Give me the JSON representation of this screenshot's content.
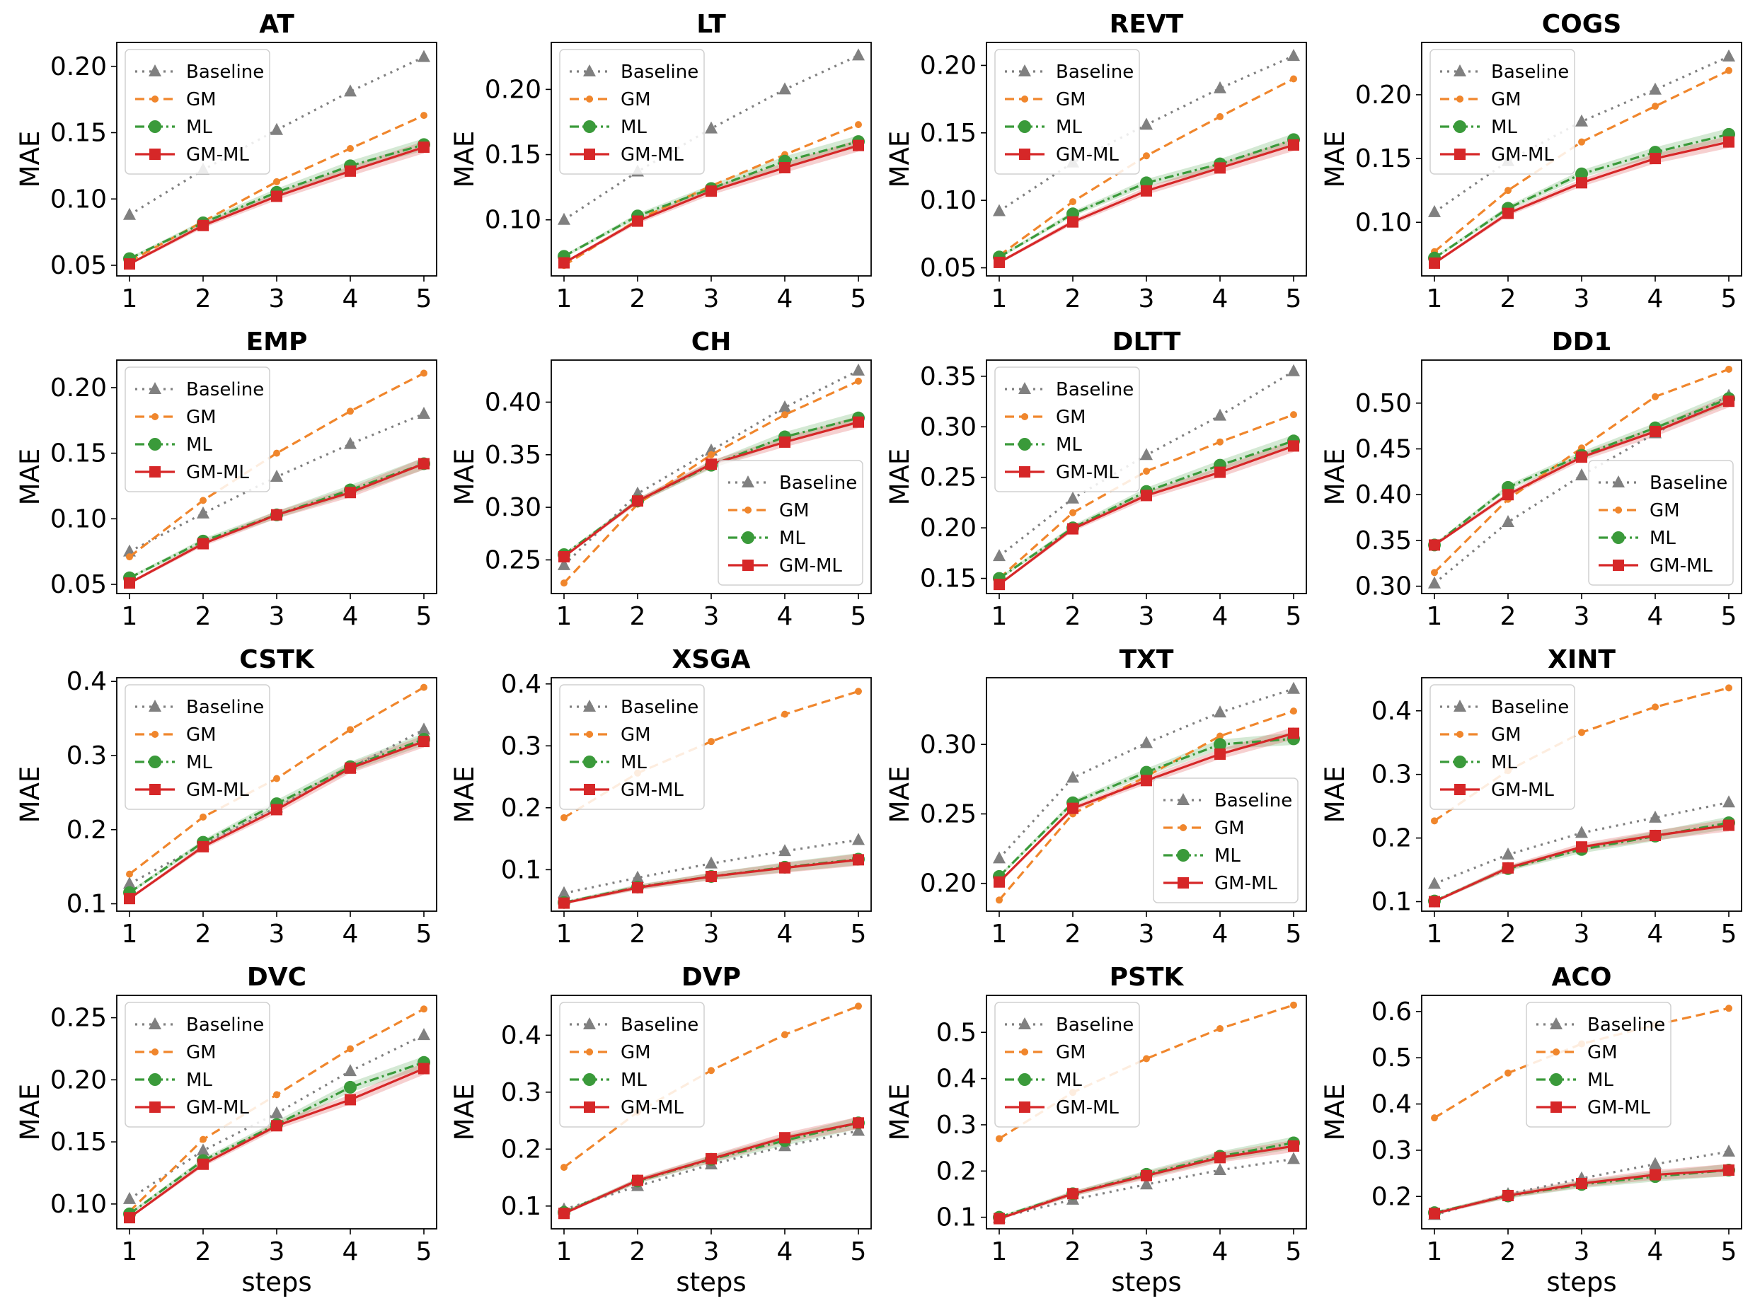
{
  "colors": {
    "Baseline": "#808080",
    "GM": "#f0862c",
    "ML": "#3a9a3a",
    "GM-ML": "#d62728"
  },
  "markers": {
    "Baseline": "triangle",
    "GM": "small-circle",
    "ML": "circle",
    "GM-ML": "square"
  },
  "dashes": {
    "Baseline": "dotted",
    "GM": "dashed",
    "ML": "dashdot",
    "GM-ML": "solid"
  },
  "chart_data": [
    {
      "type": "line",
      "title": "AT",
      "xlabel": "",
      "ylabel": "MAE",
      "x": [
        1,
        2,
        3,
        4,
        5
      ],
      "ylim": [
        0.042,
        0.218
      ],
      "yticks": [
        0.05,
        0.1,
        0.15,
        0.2
      ],
      "ytick_labels": [
        "0.05",
        "0.10",
        "0.15",
        "0.20"
      ],
      "legend": "upper-left",
      "series": [
        {
          "name": "Baseline",
          "values": [
            0.088,
            0.122,
            0.152,
            0.181,
            0.207
          ]
        },
        {
          "name": "GM",
          "values": [
            0.053,
            0.083,
            0.113,
            0.138,
            0.163
          ]
        },
        {
          "name": "ML",
          "values": [
            0.055,
            0.082,
            0.105,
            0.125,
            0.141
          ]
        },
        {
          "name": "GM-ML",
          "values": [
            0.051,
            0.08,
            0.102,
            0.121,
            0.139
          ]
        }
      ]
    },
    {
      "type": "line",
      "title": "LT",
      "xlabel": "",
      "ylabel": "MAE",
      "x": [
        1,
        2,
        3,
        4,
        5
      ],
      "ylim": [
        0.057,
        0.236
      ],
      "yticks": [
        0.1,
        0.15,
        0.2
      ],
      "ytick_labels": [
        "0.10",
        "0.15",
        "0.20"
      ],
      "legend": "upper-left",
      "series": [
        {
          "name": "Baseline",
          "values": [
            0.1,
            0.137,
            0.17,
            0.2,
            0.226
          ]
        },
        {
          "name": "GM",
          "values": [
            0.065,
            0.1,
            0.126,
            0.15,
            0.173
          ]
        },
        {
          "name": "ML",
          "values": [
            0.072,
            0.103,
            0.124,
            0.145,
            0.16
          ]
        },
        {
          "name": "GM-ML",
          "values": [
            0.067,
            0.099,
            0.122,
            0.14,
            0.157
          ]
        }
      ]
    },
    {
      "type": "line",
      "title": "REVT",
      "xlabel": "",
      "ylabel": "MAE",
      "x": [
        1,
        2,
        3,
        4,
        5
      ],
      "ylim": [
        0.044,
        0.217
      ],
      "yticks": [
        0.05,
        0.1,
        0.15,
        0.2
      ],
      "ytick_labels": [
        "0.05",
        "0.10",
        "0.15",
        "0.20"
      ],
      "legend": "upper-left",
      "series": [
        {
          "name": "Baseline",
          "values": [
            0.092,
            0.128,
            0.156,
            0.183,
            0.207
          ]
        },
        {
          "name": "GM",
          "values": [
            0.059,
            0.099,
            0.133,
            0.162,
            0.19
          ]
        },
        {
          "name": "ML",
          "values": [
            0.058,
            0.09,
            0.113,
            0.127,
            0.145
          ]
        },
        {
          "name": "GM-ML",
          "values": [
            0.054,
            0.084,
            0.107,
            0.124,
            0.141
          ]
        }
      ]
    },
    {
      "type": "line",
      "title": "COGS",
      "xlabel": "",
      "ylabel": "MAE",
      "x": [
        1,
        2,
        3,
        4,
        5
      ],
      "ylim": [
        0.058,
        0.241
      ],
      "yticks": [
        0.1,
        0.15,
        0.2
      ],
      "ytick_labels": [
        "0.10",
        "0.15",
        "0.20"
      ],
      "legend": "upper-left",
      "series": [
        {
          "name": "Baseline",
          "values": [
            0.108,
            0.148,
            0.179,
            0.204,
            0.23
          ]
        },
        {
          "name": "GM",
          "values": [
            0.077,
            0.125,
            0.163,
            0.191,
            0.219
          ]
        },
        {
          "name": "ML",
          "values": [
            0.072,
            0.111,
            0.138,
            0.155,
            0.169
          ]
        },
        {
          "name": "GM-ML",
          "values": [
            0.068,
            0.107,
            0.131,
            0.15,
            0.163
          ]
        }
      ]
    },
    {
      "type": "line",
      "title": "EMP",
      "xlabel": "",
      "ylabel": "MAE",
      "x": [
        1,
        2,
        3,
        4,
        5
      ],
      "ylim": [
        0.043,
        0.221
      ],
      "yticks": [
        0.05,
        0.1,
        0.15,
        0.2
      ],
      "ytick_labels": [
        "0.05",
        "0.10",
        "0.15",
        "0.20"
      ],
      "legend": "upper-left",
      "series": [
        {
          "name": "Baseline",
          "values": [
            0.075,
            0.104,
            0.132,
            0.157,
            0.18
          ]
        },
        {
          "name": "GM",
          "values": [
            0.071,
            0.114,
            0.15,
            0.182,
            0.211
          ]
        },
        {
          "name": "ML",
          "values": [
            0.055,
            0.083,
            0.103,
            0.122,
            0.142
          ]
        },
        {
          "name": "GM-ML",
          "values": [
            0.051,
            0.081,
            0.103,
            0.12,
            0.142
          ]
        }
      ]
    },
    {
      "type": "line",
      "title": "CH",
      "xlabel": "",
      "ylabel": "MAE",
      "x": [
        1,
        2,
        3,
        4,
        5
      ],
      "ylim": [
        0.218,
        0.44
      ],
      "yticks": [
        0.25,
        0.3,
        0.35,
        0.4
      ],
      "ytick_labels": [
        "0.25",
        "0.30",
        "0.35",
        "0.40"
      ],
      "legend": "lower-right",
      "series": [
        {
          "name": "Baseline",
          "values": [
            0.245,
            0.313,
            0.354,
            0.395,
            0.43
          ]
        },
        {
          "name": "GM",
          "values": [
            0.228,
            0.303,
            0.35,
            0.388,
            0.42
          ]
        },
        {
          "name": "ML",
          "values": [
            0.255,
            0.306,
            0.34,
            0.367,
            0.385
          ]
        },
        {
          "name": "GM-ML",
          "values": [
            0.253,
            0.306,
            0.341,
            0.362,
            0.381
          ]
        }
      ]
    },
    {
      "type": "line",
      "title": "DLTT",
      "xlabel": "",
      "ylabel": "MAE",
      "x": [
        1,
        2,
        3,
        4,
        5
      ],
      "ylim": [
        0.135,
        0.366
      ],
      "yticks": [
        0.15,
        0.2,
        0.25,
        0.3,
        0.35
      ],
      "ytick_labels": [
        "0.15",
        "0.20",
        "0.25",
        "0.30",
        "0.35"
      ],
      "legend": "upper-left",
      "series": [
        {
          "name": "Baseline",
          "values": [
            0.172,
            0.229,
            0.272,
            0.311,
            0.355
          ]
        },
        {
          "name": "GM",
          "values": [
            0.15,
            0.215,
            0.256,
            0.285,
            0.312
          ]
        },
        {
          "name": "ML",
          "values": [
            0.15,
            0.2,
            0.236,
            0.262,
            0.286
          ]
        },
        {
          "name": "GM-ML",
          "values": [
            0.144,
            0.199,
            0.232,
            0.255,
            0.281
          ]
        }
      ]
    },
    {
      "type": "line",
      "title": "DD1",
      "xlabel": "",
      "ylabel": "MAE",
      "x": [
        1,
        2,
        3,
        4,
        5
      ],
      "ylim": [
        0.292,
        0.547
      ],
      "yticks": [
        0.3,
        0.35,
        0.4,
        0.45,
        0.5
      ],
      "ytick_labels": [
        "0.30",
        "0.35",
        "0.40",
        "0.45",
        "0.50"
      ],
      "legend": "lower-right",
      "series": [
        {
          "name": "Baseline",
          "values": [
            0.303,
            0.37,
            0.421,
            0.467,
            0.508
          ]
        },
        {
          "name": "GM",
          "values": [
            0.315,
            0.395,
            0.451,
            0.507,
            0.537
          ]
        },
        {
          "name": "ML",
          "values": [
            0.345,
            0.408,
            0.443,
            0.473,
            0.505
          ]
        },
        {
          "name": "GM-ML",
          "values": [
            0.345,
            0.4,
            0.441,
            0.469,
            0.502
          ]
        }
      ]
    },
    {
      "type": "line",
      "title": "CSTK",
      "xlabel": "",
      "ylabel": "MAE",
      "x": [
        1,
        2,
        3,
        4,
        5
      ],
      "ylim": [
        0.09,
        0.405
      ],
      "yticks": [
        0.1,
        0.2,
        0.3,
        0.4
      ],
      "ytick_labels": [
        "0.1",
        "0.2",
        "0.3",
        "0.4"
      ],
      "legend": "upper-left",
      "series": [
        {
          "name": "Baseline",
          "values": [
            0.127,
            0.18,
            0.23,
            0.283,
            0.335
          ]
        },
        {
          "name": "GM",
          "values": [
            0.14,
            0.217,
            0.269,
            0.335,
            0.392
          ]
        },
        {
          "name": "ML",
          "values": [
            0.115,
            0.183,
            0.235,
            0.285,
            0.322
          ]
        },
        {
          "name": "GM-ML",
          "values": [
            0.107,
            0.177,
            0.227,
            0.283,
            0.319
          ]
        }
      ]
    },
    {
      "type": "line",
      "title": "XSGA",
      "xlabel": "",
      "ylabel": "MAE",
      "x": [
        1,
        2,
        3,
        4,
        5
      ],
      "ylim": [
        0.033,
        0.41
      ],
      "yticks": [
        0.1,
        0.2,
        0.3,
        0.4
      ],
      "ytick_labels": [
        "0.1",
        "0.2",
        "0.3",
        "0.4"
      ],
      "legend": "upper-left",
      "series": [
        {
          "name": "Baseline",
          "values": [
            0.062,
            0.087,
            0.11,
            0.13,
            0.148
          ]
        },
        {
          "name": "GM",
          "values": [
            0.184,
            0.256,
            0.307,
            0.351,
            0.388
          ]
        },
        {
          "name": "ML",
          "values": [
            0.047,
            0.072,
            0.089,
            0.104,
            0.117
          ]
        },
        {
          "name": "GM-ML",
          "values": [
            0.046,
            0.071,
            0.089,
            0.103,
            0.116
          ]
        }
      ]
    },
    {
      "type": "line",
      "title": "TXT",
      "xlabel": "",
      "ylabel": "MAE",
      "x": [
        1,
        2,
        3,
        4,
        5
      ],
      "ylim": [
        0.18,
        0.348
      ],
      "yticks": [
        0.2,
        0.25,
        0.3
      ],
      "ytick_labels": [
        "0.20",
        "0.25",
        "0.30"
      ],
      "legend": "lower-right",
      "series": [
        {
          "name": "Baseline",
          "values": [
            0.218,
            0.276,
            0.301,
            0.323,
            0.34
          ]
        },
        {
          "name": "GM",
          "values": [
            0.188,
            0.25,
            0.277,
            0.306,
            0.324
          ]
        },
        {
          "name": "ML",
          "values": [
            0.205,
            0.258,
            0.28,
            0.3,
            0.304
          ]
        },
        {
          "name": "GM-ML",
          "values": [
            0.201,
            0.254,
            0.274,
            0.293,
            0.308
          ]
        }
      ]
    },
    {
      "type": "line",
      "title": "XINT",
      "xlabel": "",
      "ylabel": "MAE",
      "x": [
        1,
        2,
        3,
        4,
        5
      ],
      "ylim": [
        0.085,
        0.452
      ],
      "yticks": [
        0.1,
        0.2,
        0.3,
        0.4
      ],
      "ytick_labels": [
        "0.1",
        "0.2",
        "0.3",
        "0.4"
      ],
      "legend": "upper-left",
      "series": [
        {
          "name": "Baseline",
          "values": [
            0.128,
            0.174,
            0.208,
            0.232,
            0.256
          ]
        },
        {
          "name": "GM",
          "values": [
            0.227,
            0.306,
            0.366,
            0.406,
            0.436
          ]
        },
        {
          "name": "ML",
          "values": [
            0.101,
            0.152,
            0.182,
            0.203,
            0.224
          ]
        },
        {
          "name": "GM-ML",
          "values": [
            0.1,
            0.153,
            0.186,
            0.204,
            0.22
          ]
        }
      ]
    },
    {
      "type": "line",
      "title": "DVC",
      "xlabel": "",
      "ylabel": "MAE",
      "x": [
        1,
        2,
        3,
        4,
        5
      ],
      "ylim": [
        0.08,
        0.268
      ],
      "yticks": [
        0.1,
        0.15,
        0.2,
        0.25
      ],
      "ytick_labels": [
        "0.10",
        "0.15",
        "0.20",
        "0.25"
      ],
      "legend": "upper-left",
      "series": [
        {
          "name": "Baseline",
          "values": [
            0.104,
            0.143,
            0.173,
            0.207,
            0.236
          ]
        },
        {
          "name": "GM",
          "values": [
            0.094,
            0.152,
            0.188,
            0.225,
            0.257
          ]
        },
        {
          "name": "ML",
          "values": [
            0.092,
            0.135,
            0.164,
            0.194,
            0.214
          ]
        },
        {
          "name": "GM-ML",
          "values": [
            0.089,
            0.132,
            0.163,
            0.184,
            0.209
          ]
        }
      ]
    },
    {
      "type": "line",
      "title": "DVP",
      "xlabel": "",
      "ylabel": "MAE",
      "x": [
        1,
        2,
        3,
        4,
        5
      ],
      "ylim": [
        0.06,
        0.47
      ],
      "yticks": [
        0.1,
        0.2,
        0.3,
        0.4
      ],
      "ytick_labels": [
        "0.1",
        "0.2",
        "0.3",
        "0.4"
      ],
      "legend": "upper-left",
      "series": [
        {
          "name": "Baseline",
          "values": [
            0.094,
            0.135,
            0.173,
            0.205,
            0.232
          ]
        },
        {
          "name": "GM",
          "values": [
            0.168,
            0.265,
            0.338,
            0.401,
            0.451
          ]
        },
        {
          "name": "ML",
          "values": [
            0.089,
            0.144,
            0.182,
            0.215,
            0.246
          ]
        },
        {
          "name": "GM-ML",
          "values": [
            0.087,
            0.145,
            0.183,
            0.22,
            0.246
          ]
        }
      ]
    },
    {
      "type": "line",
      "title": "PSTK",
      "xlabel": "",
      "ylabel": "MAE",
      "x": [
        1,
        2,
        3,
        4,
        5
      ],
      "ylim": [
        0.075,
        0.58
      ],
      "yticks": [
        0.1,
        0.2,
        0.3,
        0.4,
        0.5
      ],
      "ytick_labels": [
        "0.1",
        "0.2",
        "0.3",
        "0.4",
        "0.5"
      ],
      "legend": "upper-left",
      "series": [
        {
          "name": "Baseline",
          "values": [
            0.099,
            0.138,
            0.171,
            0.202,
            0.226
          ]
        },
        {
          "name": "GM",
          "values": [
            0.27,
            0.37,
            0.443,
            0.508,
            0.559
          ]
        },
        {
          "name": "ML",
          "values": [
            0.1,
            0.151,
            0.193,
            0.232,
            0.261
          ]
        },
        {
          "name": "GM-ML",
          "values": [
            0.097,
            0.151,
            0.19,
            0.229,
            0.254
          ]
        }
      ]
    },
    {
      "type": "line",
      "title": "ACO",
      "xlabel": "",
      "ylabel": "MAE",
      "x": [
        1,
        2,
        3,
        4,
        5
      ],
      "ylim": [
        0.13,
        0.635
      ],
      "yticks": [
        0.2,
        0.3,
        0.4,
        0.5,
        0.6
      ],
      "ytick_labels": [
        "0.2",
        "0.3",
        "0.4",
        "0.5",
        "0.6"
      ],
      "legend": "upper-center",
      "series": [
        {
          "name": "Baseline",
          "values": [
            0.16,
            0.205,
            0.239,
            0.27,
            0.297
          ]
        },
        {
          "name": "GM",
          "values": [
            0.37,
            0.467,
            0.53,
            0.571,
            0.607
          ]
        },
        {
          "name": "ML",
          "values": [
            0.165,
            0.201,
            0.226,
            0.243,
            0.257
          ]
        },
        {
          "name": "GM-ML",
          "values": [
            0.163,
            0.202,
            0.228,
            0.247,
            0.257
          ]
        }
      ]
    }
  ],
  "xlabel_bottom": "steps",
  "xtick_labels": [
    "1",
    "2",
    "3",
    "4",
    "5"
  ]
}
